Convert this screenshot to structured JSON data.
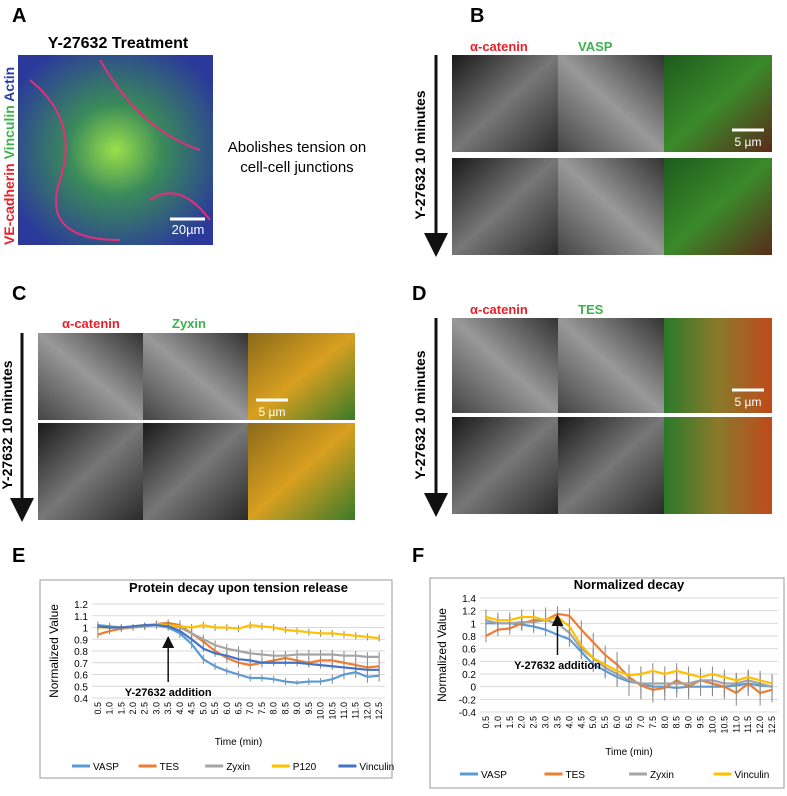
{
  "panels": {
    "a": {
      "label": "A",
      "title": "Y-27632 Treatment",
      "stain_red": "VE-cadherin",
      "stain_green": "Vinculin",
      "stain_blue": "Actin",
      "scale": "20µm"
    },
    "note": [
      "Abolishes tension on",
      "cell-cell junctions"
    ],
    "b": {
      "label": "B",
      "ch1": "α-catenin",
      "ch2": "VASP",
      "arrow": "Y-27632 10 minutes",
      "scale": "5 µm"
    },
    "c": {
      "label": "C",
      "ch1": "α-catenin",
      "ch2": "Zyxin",
      "arrow": "Y-27632 10 minutes",
      "scale": "5 µm"
    },
    "d": {
      "label": "D",
      "ch1": "α-catenin",
      "ch2": "TES",
      "arrow": "Y-27632 10 minutes",
      "scale": "5 µm"
    },
    "e": {
      "label": "E"
    },
    "f": {
      "label": "F"
    }
  },
  "chart_data": [
    {
      "type": "line",
      "title": "Protein decay upon tension release",
      "x_label": "Time (min)",
      "y_label": "Normalized Value",
      "annotation": "Y-27632 addition",
      "grid": true,
      "legend": "bottom",
      "categories": [
        "0.5",
        "1.0",
        "1.5",
        "2.0",
        "2.5",
        "3.0",
        "3.5",
        "4.0",
        "4.5",
        "5.0",
        "5.5",
        "6.0",
        "6.5",
        "7.0",
        "7.5",
        "8.0",
        "8.5",
        "9.0",
        "9.5",
        "10.0",
        "10.5",
        "11.0",
        "11.5",
        "12.0",
        "12.5"
      ],
      "ylim": [
        0.4,
        1.2
      ],
      "yticks": [
        0.4,
        0.5,
        0.6,
        0.7,
        0.8,
        0.9,
        1,
        1.1,
        1.2
      ],
      "series": [
        {
          "name": "VASP",
          "color": "#5b9bd5",
          "values": [
            1.02,
            1.01,
            1.0,
            1.0,
            1.01,
            1.02,
            1.0,
            0.95,
            0.86,
            0.73,
            0.67,
            0.63,
            0.6,
            0.57,
            0.57,
            0.56,
            0.54,
            0.53,
            0.54,
            0.54,
            0.56,
            0.6,
            0.62,
            0.58,
            0.59
          ],
          "errors": [
            0.03,
            0.03,
            0.02,
            0.02,
            0.02,
            0.03,
            0.03,
            0.04,
            0.04,
            0.04,
            0.03,
            0.03,
            0.03,
            0.03,
            0.03,
            0.03,
            0.03,
            0.02,
            0.03,
            0.03,
            0.04,
            0.04,
            0.05,
            0.05,
            0.05
          ]
        },
        {
          "name": "TES",
          "color": "#ed7d31",
          "values": [
            0.94,
            0.97,
            0.99,
            1.0,
            1.01,
            1.03,
            1.04,
            1.02,
            0.95,
            0.88,
            0.8,
            0.74,
            0.7,
            0.68,
            0.7,
            0.72,
            0.74,
            0.72,
            0.7,
            0.72,
            0.72,
            0.7,
            0.68,
            0.66,
            0.67
          ],
          "errors": [
            0.03,
            0.03,
            0.03,
            0.03,
            0.03,
            0.03,
            0.03,
            0.04,
            0.04,
            0.04,
            0.04,
            0.04,
            0.04,
            0.04,
            0.04,
            0.04,
            0.04,
            0.04,
            0.04,
            0.04,
            0.04,
            0.04,
            0.05,
            0.05,
            0.05
          ]
        },
        {
          "name": "Zyxin",
          "color": "#a5a5a5",
          "values": [
            1.0,
            1.0,
            1.0,
            1.0,
            1.01,
            1.02,
            1.02,
            1.0,
            0.95,
            0.9,
            0.85,
            0.82,
            0.8,
            0.78,
            0.77,
            0.76,
            0.76,
            0.77,
            0.77,
            0.77,
            0.77,
            0.76,
            0.76,
            0.75,
            0.75
          ],
          "errors": [
            0.03,
            0.03,
            0.03,
            0.03,
            0.03,
            0.03,
            0.03,
            0.04,
            0.04,
            0.04,
            0.04,
            0.04,
            0.04,
            0.04,
            0.04,
            0.04,
            0.04,
            0.04,
            0.04,
            0.04,
            0.04,
            0.04,
            0.04,
            0.04,
            0.04
          ]
        },
        {
          "name": "P120",
          "color": "#ffc000",
          "values": [
            1.0,
            1.0,
            1.0,
            1.01,
            1.02,
            1.03,
            1.02,
            1.01,
            1.0,
            1.02,
            1.0,
            1.0,
            0.99,
            1.02,
            1.01,
            1.0,
            0.98,
            0.97,
            0.96,
            0.95,
            0.95,
            0.94,
            0.93,
            0.92,
            0.91
          ],
          "errors": [
            0.02,
            0.02,
            0.02,
            0.02,
            0.02,
            0.03,
            0.03,
            0.03,
            0.03,
            0.03,
            0.03,
            0.03,
            0.03,
            0.03,
            0.03,
            0.03,
            0.03,
            0.03,
            0.03,
            0.03,
            0.03,
            0.03,
            0.03,
            0.03,
            0.03
          ]
        },
        {
          "name": "Vinculin",
          "color": "#4472c4",
          "values": [
            1.01,
            1.0,
            1.0,
            1.01,
            1.02,
            1.02,
            1.01,
            0.97,
            0.9,
            0.82,
            0.78,
            0.76,
            0.73,
            0.72,
            0.7,
            0.7,
            0.7,
            0.7,
            0.69,
            0.68,
            0.67,
            0.66,
            0.65,
            0.64,
            0.64
          ],
          "errors": [
            0.02,
            0.02,
            0.02,
            0.02,
            0.02,
            0.02,
            0.02,
            0.03,
            0.03,
            0.03,
            0.03,
            0.03,
            0.03,
            0.03,
            0.03,
            0.03,
            0.03,
            0.03,
            0.03,
            0.03,
            0.03,
            0.03,
            0.03,
            0.03,
            0.03
          ]
        }
      ]
    },
    {
      "type": "line",
      "title": "Normalized decay",
      "x_label": "Time (min)",
      "y_label": "Normalized Value",
      "annotation": "Y-27632 addition",
      "grid": true,
      "legend": "bottom",
      "categories": [
        "0.5",
        "1.0",
        "1.5",
        "2.0",
        "2.5",
        "3.0",
        "3.5",
        "4.0",
        "4.5",
        "5.0",
        "5.5",
        "6.0",
        "6.5",
        "7.0",
        "7.5",
        "8.0",
        "8.5",
        "9.0",
        "9.5",
        "10.0",
        "10.5",
        "11.0",
        "11.5",
        "12.0",
        "12.5"
      ],
      "ylim": [
        -0.4,
        1.4
      ],
      "yticks": [
        -0.4,
        -0.2,
        0,
        0.2,
        0.4,
        0.6,
        0.8,
        1,
        1.2,
        1.4
      ],
      "series": [
        {
          "name": "VASP",
          "color": "#5b9bd5",
          "values": [
            1.0,
            1.0,
            1.0,
            0.98,
            0.95,
            0.9,
            0.82,
            0.75,
            0.55,
            0.35,
            0.25,
            0.15,
            0.08,
            0.05,
            0.0,
            0.0,
            -0.02,
            0.0,
            0.0,
            0.0,
            0.0,
            0.02,
            0.05,
            0.02,
            0.0
          ],
          "errors": [
            0.1,
            0.1,
            0.1,
            0.1,
            0.1,
            0.1,
            0.1,
            0.12,
            0.12,
            0.12,
            0.12,
            0.15,
            0.15,
            0.15,
            0.15,
            0.15,
            0.15,
            0.15,
            0.15,
            0.15,
            0.15,
            0.15,
            0.15,
            0.15,
            0.15
          ]
        },
        {
          "name": "TES",
          "color": "#ed7d31",
          "values": [
            0.8,
            0.9,
            0.92,
            1.0,
            1.05,
            1.05,
            1.15,
            1.12,
            0.9,
            0.7,
            0.5,
            0.35,
            0.15,
            0.02,
            -0.05,
            -0.02,
            0.1,
            0.0,
            0.1,
            0.05,
            0.0,
            -0.1,
            0.05,
            -0.1,
            -0.05
          ],
          "errors": [
            0.1,
            0.1,
            0.1,
            0.1,
            0.12,
            0.12,
            0.12,
            0.12,
            0.15,
            0.15,
            0.15,
            0.2,
            0.2,
            0.2,
            0.2,
            0.2,
            0.2,
            0.2,
            0.2,
            0.2,
            0.2,
            0.2,
            0.2,
            0.2,
            0.2
          ]
        },
        {
          "name": "Zyxin",
          "color": "#a5a5a5",
          "values": [
            1.05,
            1.0,
            1.0,
            1.02,
            1.02,
            1.05,
            1.0,
            0.85,
            0.6,
            0.45,
            0.3,
            0.2,
            0.1,
            0.05,
            0.05,
            0.05,
            0.05,
            0.05,
            0.1,
            0.1,
            0.05,
            0.05,
            0.1,
            0.05,
            0.0
          ],
          "errors": [
            0.15,
            0.12,
            0.12,
            0.12,
            0.15,
            0.2,
            0.15,
            0.15,
            0.15,
            0.15,
            0.15,
            0.2,
            0.25,
            0.25,
            0.2,
            0.15,
            0.15,
            0.15,
            0.15,
            0.15,
            0.15,
            0.15,
            0.15,
            0.2,
            0.2
          ]
        },
        {
          "name": "Vinculin",
          "color": "#ffc000",
          "values": [
            1.1,
            1.05,
            1.05,
            1.1,
            1.1,
            1.05,
            1.1,
            0.95,
            0.65,
            0.45,
            0.35,
            0.25,
            0.18,
            0.2,
            0.25,
            0.2,
            0.25,
            0.2,
            0.15,
            0.2,
            0.15,
            0.1,
            0.15,
            0.1,
            0.05
          ],
          "errors": [
            0.12,
            0.12,
            0.12,
            0.12,
            0.12,
            0.12,
            0.12,
            0.12,
            0.12,
            0.12,
            0.12,
            0.12,
            0.12,
            0.12,
            0.12,
            0.12,
            0.12,
            0.12,
            0.12,
            0.12,
            0.12,
            0.12,
            0.12,
            0.12,
            0.12
          ]
        }
      ]
    }
  ]
}
